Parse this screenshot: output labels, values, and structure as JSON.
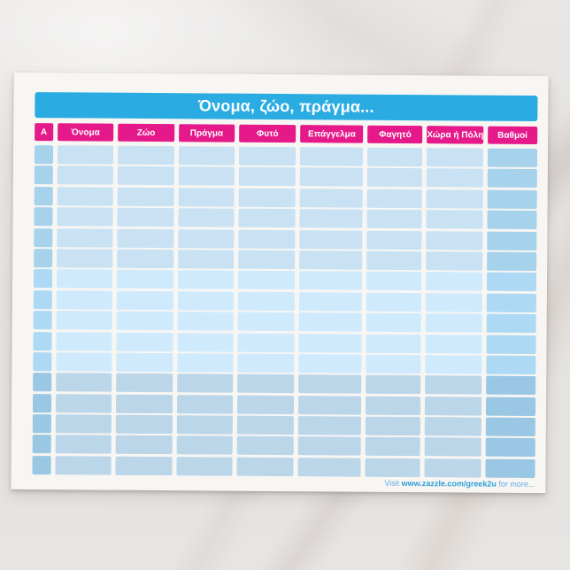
{
  "letterhead": {
    "title": "Όνομα, ζώο, πράγμα...",
    "columns": [
      {
        "key": "letter",
        "label": "Α"
      },
      {
        "key": "name",
        "label": "Όνομα"
      },
      {
        "key": "animal",
        "label": "Ζώο"
      },
      {
        "key": "thing",
        "label": "Πράγμα"
      },
      {
        "key": "plant",
        "label": "Φυτό"
      },
      {
        "key": "profession",
        "label": "Επάγγελμα"
      },
      {
        "key": "food",
        "label": "Φαγητό"
      },
      {
        "key": "country-or-city",
        "label": "Χώρα ή Πόλη"
      },
      {
        "key": "points",
        "label": "Βαθμοί"
      }
    ],
    "row_count": 16,
    "footer": {
      "prefix": "Visit ",
      "link": "www.zazzle.com/greek2u",
      "suffix": " for more..."
    },
    "colors": {
      "title_bg": "#2aace2",
      "header_bg": "#e5198a",
      "cell_light": "#c8e2f4",
      "cell_dark": "#a7d2ec",
      "footer_text": "#5fade0",
      "footer_link": "#2d9fd9",
      "paper": "#f7f6f3"
    }
  }
}
